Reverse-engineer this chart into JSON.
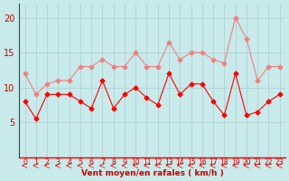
{
  "x": [
    0,
    1,
    2,
    3,
    4,
    5,
    6,
    7,
    8,
    9,
    10,
    11,
    12,
    13,
    14,
    15,
    16,
    17,
    18,
    19,
    20,
    21,
    22,
    23
  ],
  "rafales": [
    12,
    9,
    10.5,
    11,
    11,
    13,
    13,
    14,
    13,
    13,
    15,
    13,
    13,
    16.5,
    14,
    15,
    15,
    14,
    13.5,
    20,
    17,
    11,
    13,
    13
  ],
  "moyen": [
    8,
    5.5,
    9,
    9,
    9,
    8,
    7,
    11,
    7,
    9,
    10,
    8.5,
    7.5,
    12,
    9,
    10.5,
    10.5,
    8,
    6,
    12,
    6,
    6.5,
    8,
    9
  ],
  "rafales_color": "#f08080",
  "moyen_color": "#ff0000",
  "bg_color": "#c8eaea",
  "grid_color": "#aacccc",
  "xlabel": "Vent moyen/en rafales ( km/h )",
  "xlabel_color": "#cc0000",
  "tick_color": "#cc0000",
  "ylim": [
    0,
    22
  ],
  "yticks": [
    5,
    10,
    15,
    20
  ]
}
